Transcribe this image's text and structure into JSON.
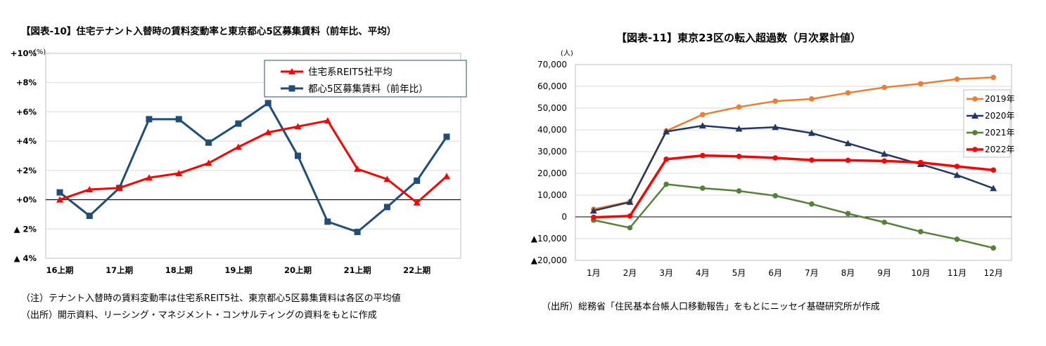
{
  "chart_data": [
    {
      "type": "line",
      "title": "【図表-10】住宅テナント入替時の賃料変動率と東京都心5区募集賃料（前年比、平均）",
      "unit": "(%)",
      "ylim": [
        -4,
        10
      ],
      "y_ticks": [
        {
          "value": 10,
          "label": "+10%"
        },
        {
          "value": 8,
          "label": "+8%"
        },
        {
          "value": 6,
          "label": "+6%"
        },
        {
          "value": 4,
          "label": "+4%"
        },
        {
          "value": 2,
          "label": "+2%"
        },
        {
          "value": 0,
          "label": "+0%"
        },
        {
          "value": -2,
          "label": "▲ 2%"
        },
        {
          "value": -4,
          "label": "▲ 4%"
        }
      ],
      "x_labels": [
        "16上期",
        "17上期",
        "18上期",
        "19上期",
        "20上期",
        "21上期",
        "22上期"
      ],
      "n_points": 14,
      "grid": "horizontal",
      "legend_position": "top-right",
      "series": [
        {
          "name": "住宅系REIT5社平均",
          "color": "#ff0000",
          "marker": "triangle",
          "values": [
            0.0,
            0.7,
            0.8,
            1.5,
            1.8,
            2.5,
            3.6,
            4.6,
            5.0,
            5.4,
            2.1,
            1.4,
            -0.2,
            1.6
          ]
        },
        {
          "name": "都心5区募集賃料（前年比）",
          "color": "#1f4e79",
          "marker": "square",
          "values": [
            0.5,
            -1.1,
            0.8,
            5.5,
            5.5,
            3.9,
            5.2,
            6.6,
            3.0,
            -1.5,
            -2.2,
            -0.5,
            1.3,
            4.3
          ]
        }
      ],
      "notes": [
        "（注）テナント入替時の賃料変動率は住宅系REIT5社、東京都心5区募集賃料は各区の平均値",
        "（出所）開示資料、リーシング・マネジメント・コンサルティングの資料をもとに作成"
      ]
    },
    {
      "type": "line",
      "title": "【図表-11】東京23区の転入超過数（月次累計値）",
      "unit": "(人)",
      "ylim": [
        -20000,
        70000
      ],
      "y_ticks": [
        {
          "value": 70000,
          "label": "70,000"
        },
        {
          "value": 60000,
          "label": "60,000"
        },
        {
          "value": 50000,
          "label": "50,000"
        },
        {
          "value": 40000,
          "label": "40,000"
        },
        {
          "value": 30000,
          "label": "30,000"
        },
        {
          "value": 20000,
          "label": "20,000"
        },
        {
          "value": 10000,
          "label": "10,000"
        },
        {
          "value": 0,
          "label": "0"
        },
        {
          "value": -10000,
          "label": "▲10,000"
        },
        {
          "value": -20000,
          "label": "▲20,000"
        }
      ],
      "categories": [
        "1月",
        "2月",
        "3月",
        "4月",
        "5月",
        "6月",
        "7月",
        "8月",
        "9月",
        "10月",
        "11月",
        "12月"
      ],
      "grid": "horizontal",
      "legend_position": "right",
      "series": [
        {
          "name": "2019年",
          "color": "#ed7d31",
          "marker": "circle",
          "values": [
            3500,
            7000,
            39500,
            47000,
            50500,
            53200,
            54200,
            57000,
            59500,
            61200,
            63300,
            64100
          ]
        },
        {
          "name": "2020年",
          "color": "#1f3864",
          "marker": "triangle",
          "values": [
            2800,
            6800,
            39200,
            41900,
            40500,
            41200,
            38500,
            33800,
            28900,
            24200,
            19200,
            13100
          ]
        },
        {
          "name": "2021年",
          "color": "#548235",
          "marker": "circle",
          "values": [
            -1500,
            -5000,
            15000,
            13200,
            11900,
            9700,
            5900,
            1500,
            -2500,
            -6800,
            -10300,
            -14300
          ]
        },
        {
          "name": "2022年",
          "color": "#ff0000",
          "marker": "circle",
          "values": [
            -200,
            400,
            26500,
            28200,
            27800,
            27100,
            26100,
            26000,
            25700,
            25000,
            23200,
            21500
          ]
        }
      ],
      "notes": [
        "（出所）総務省「住民基本台帳人口移動報告」をもとにニッセイ基礎研究所が作成"
      ]
    }
  ]
}
